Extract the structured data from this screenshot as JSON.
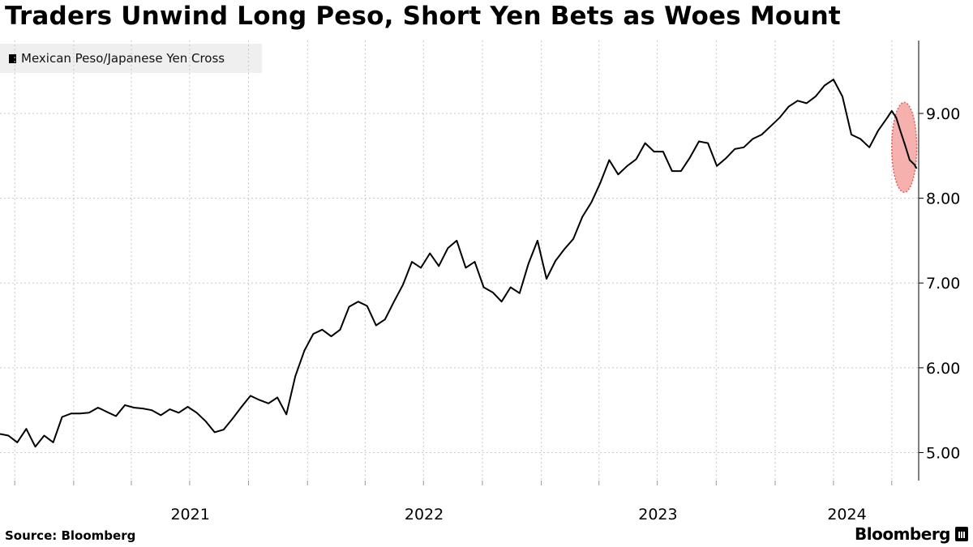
{
  "title": "Traders Unwind Long Peso, Short Yen Bets as Woes Mount",
  "source": "Source: Bloomberg",
  "brand": "Bloomberg",
  "colors": {
    "line": "#000000",
    "highlight": "#f4a3a0",
    "highlight_border": "#e06060",
    "grid": "#c8c8c8",
    "legend_bg": "#efefef"
  },
  "chart_data": {
    "type": "line",
    "title": "Traders Unwind Long Peso, Short Yen Bets as Woes Mount",
    "xlabel": "",
    "ylabel": "",
    "x_ticks": [
      "2021",
      "2022",
      "2023",
      "2024"
    ],
    "y_ticks": [
      "5.00",
      "6.00",
      "7.00",
      "8.00",
      "9.00"
    ],
    "ylim": [
      4.67,
      9.86
    ],
    "xlim": [
      "2020-09-08",
      "2024-08-12"
    ],
    "grid": true,
    "legend_position": "top-left",
    "y_axis_side": "right",
    "highlight": {
      "shape": "ellipse",
      "from": "2024-07-01",
      "to": "2024-08-09",
      "y_range": [
        8.07,
        9.13
      ]
    },
    "series": [
      {
        "name": "Mexican Peso/Japanese Yen Cross",
        "points": [
          [
            "2020-09-08",
            5.22
          ],
          [
            "2020-09-21",
            5.2
          ],
          [
            "2020-10-05",
            5.12
          ],
          [
            "2020-10-19",
            5.28
          ],
          [
            "2020-11-02",
            5.07
          ],
          [
            "2020-11-16",
            5.2
          ],
          [
            "2020-11-30",
            5.12
          ],
          [
            "2020-12-14",
            5.42
          ],
          [
            "2020-12-28",
            5.46
          ],
          [
            "2021-01-11",
            5.46
          ],
          [
            "2021-01-25",
            5.47
          ],
          [
            "2021-02-08",
            5.53
          ],
          [
            "2021-02-22",
            5.48
          ],
          [
            "2021-03-08",
            5.43
          ],
          [
            "2021-03-22",
            5.56
          ],
          [
            "2021-04-05",
            5.53
          ],
          [
            "2021-04-19",
            5.52
          ],
          [
            "2021-05-03",
            5.5
          ],
          [
            "2021-05-17",
            5.44
          ],
          [
            "2021-05-31",
            5.51
          ],
          [
            "2021-06-14",
            5.47
          ],
          [
            "2021-06-28",
            5.54
          ],
          [
            "2021-07-12",
            5.47
          ],
          [
            "2021-07-26",
            5.37
          ],
          [
            "2021-08-09",
            5.24
          ],
          [
            "2021-08-23",
            5.27
          ],
          [
            "2021-09-06",
            5.4
          ],
          [
            "2021-09-20",
            5.54
          ],
          [
            "2021-10-04",
            5.67
          ],
          [
            "2021-10-18",
            5.62
          ],
          [
            "2021-11-01",
            5.58
          ],
          [
            "2021-11-15",
            5.65
          ],
          [
            "2021-11-29",
            5.45
          ],
          [
            "2021-12-13",
            5.9
          ],
          [
            "2021-12-27",
            6.2
          ],
          [
            "2022-01-10",
            6.4
          ],
          [
            "2022-01-24",
            6.45
          ],
          [
            "2022-02-07",
            6.37
          ],
          [
            "2022-02-21",
            6.45
          ],
          [
            "2022-03-07",
            6.72
          ],
          [
            "2022-03-21",
            6.78
          ],
          [
            "2022-04-04",
            6.73
          ],
          [
            "2022-04-18",
            6.5
          ],
          [
            "2022-05-02",
            6.57
          ],
          [
            "2022-05-16",
            6.78
          ],
          [
            "2022-05-30",
            6.98
          ],
          [
            "2022-06-13",
            7.25
          ],
          [
            "2022-06-27",
            7.18
          ],
          [
            "2022-07-11",
            7.35
          ],
          [
            "2022-07-25",
            7.2
          ],
          [
            "2022-08-08",
            7.41
          ],
          [
            "2022-08-22",
            7.5
          ],
          [
            "2022-09-05",
            7.18
          ],
          [
            "2022-09-19",
            7.25
          ],
          [
            "2022-10-03",
            6.95
          ],
          [
            "2022-10-17",
            6.89
          ],
          [
            "2022-10-31",
            6.78
          ],
          [
            "2022-11-14",
            6.95
          ],
          [
            "2022-11-28",
            6.88
          ],
          [
            "2022-12-12",
            7.23
          ],
          [
            "2022-12-26",
            7.5
          ],
          [
            "2023-01-09",
            7.05
          ],
          [
            "2023-01-23",
            7.26
          ],
          [
            "2023-02-06",
            7.4
          ],
          [
            "2023-02-20",
            7.52
          ],
          [
            "2023-03-06",
            7.78
          ],
          [
            "2023-03-20",
            7.95
          ],
          [
            "2023-04-03",
            8.18
          ],
          [
            "2023-04-17",
            8.45
          ],
          [
            "2023-05-01",
            8.28
          ],
          [
            "2023-05-15",
            8.38
          ],
          [
            "2023-05-29",
            8.46
          ],
          [
            "2023-06-12",
            8.65
          ],
          [
            "2023-06-26",
            8.55
          ],
          [
            "2023-07-10",
            8.55
          ],
          [
            "2023-07-24",
            8.32
          ],
          [
            "2023-08-07",
            8.32
          ],
          [
            "2023-08-21",
            8.48
          ],
          [
            "2023-09-04",
            8.67
          ],
          [
            "2023-09-18",
            8.65
          ],
          [
            "2023-10-02",
            8.38
          ],
          [
            "2023-10-16",
            8.47
          ],
          [
            "2023-10-30",
            8.58
          ],
          [
            "2023-11-13",
            8.6
          ],
          [
            "2023-11-27",
            8.7
          ],
          [
            "2023-12-11",
            8.75
          ],
          [
            "2023-12-25",
            8.85
          ],
          [
            "2024-01-08",
            8.95
          ],
          [
            "2024-01-22",
            9.08
          ],
          [
            "2024-02-05",
            9.15
          ],
          [
            "2024-02-19",
            9.12
          ],
          [
            "2024-03-04",
            9.2
          ],
          [
            "2024-03-18",
            9.33
          ],
          [
            "2024-04-01",
            9.4
          ],
          [
            "2024-04-15",
            9.2
          ],
          [
            "2024-04-29",
            8.75
          ],
          [
            "2024-05-13",
            8.7
          ],
          [
            "2024-05-27",
            8.6
          ],
          [
            "2024-06-10",
            8.8
          ],
          [
            "2024-06-24",
            8.95
          ],
          [
            "2024-07-01",
            9.03
          ],
          [
            "2024-07-08",
            8.95
          ],
          [
            "2024-07-15",
            8.78
          ],
          [
            "2024-07-22",
            8.62
          ],
          [
            "2024-07-29",
            8.45
          ],
          [
            "2024-08-05",
            8.4
          ],
          [
            "2024-08-09",
            8.35
          ]
        ]
      }
    ]
  }
}
